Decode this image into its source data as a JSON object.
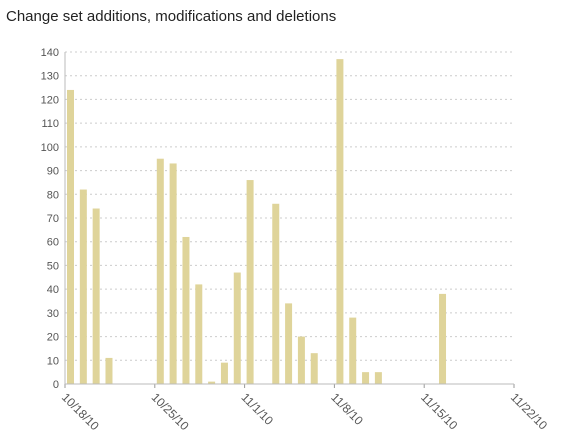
{
  "chart_data": {
    "type": "bar",
    "title": "Change set additions, modifications and deletions",
    "xlabel": "",
    "ylabel": "",
    "ylim": [
      0,
      140
    ],
    "yticks": [
      0,
      10,
      20,
      30,
      40,
      50,
      60,
      70,
      80,
      90,
      100,
      110,
      120,
      130,
      140
    ],
    "x_axis": {
      "type": "date",
      "range": [
        "2010-10-18",
        "2010-11-22"
      ],
      "tick_labels": [
        "10/18/10",
        "10/25/10",
        "11/1/10",
        "11/8/10",
        "11/15/10",
        "11/22/10"
      ],
      "tick_dates": [
        "2010-10-18",
        "2010-10-25",
        "2010-11-01",
        "2010-11-08",
        "2010-11-15",
        "2010-11-22"
      ]
    },
    "grid": true,
    "bar_color": "#dfd49a",
    "x": [
      "2010-10-18",
      "2010-10-19",
      "2010-10-20",
      "2010-10-21",
      "2010-10-25",
      "2010-10-26",
      "2010-10-27",
      "2010-10-28",
      "2010-10-29",
      "2010-10-30",
      "2010-10-31",
      "2010-11-01",
      "2010-11-03",
      "2010-11-04",
      "2010-11-05",
      "2010-11-06",
      "2010-11-08",
      "2010-11-09",
      "2010-11-10",
      "2010-11-11",
      "2010-11-16"
    ],
    "values": [
      124,
      82,
      74,
      11,
      95,
      93,
      62,
      42,
      1,
      9,
      47,
      86,
      76,
      34,
      20,
      13,
      137,
      28,
      5,
      5,
      38
    ]
  }
}
